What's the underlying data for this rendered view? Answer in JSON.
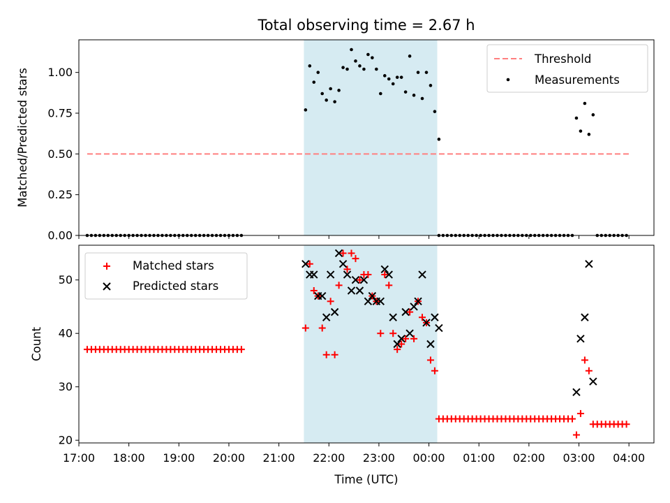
{
  "chart_data": [
    {
      "type": "scatter",
      "title": "Total observing time = 2.67 h",
      "xlabel": "",
      "ylabel": "Matched/Predicted stars",
      "xlim": [
        "17:00",
        "04:30"
      ],
      "ylim": [
        0,
        1.2
      ],
      "yticks": [
        "0.00",
        "0.25",
        "0.50",
        "0.75",
        "1.00"
      ],
      "shaded_span": [
        "21:30",
        "00:10"
      ],
      "legend": {
        "placement": "top-right",
        "entries": [
          "Threshold",
          "Measurements"
        ]
      },
      "series": [
        {
          "name": "Threshold",
          "style": "dashed-line",
          "color": "#ff7f7f",
          "x": [
            "17:10",
            "04:00"
          ],
          "values": [
            0.5,
            0.5
          ]
        },
        {
          "name": "Measurements",
          "style": "dot",
          "color": "#000000",
          "groups": [
            {
              "x_start": "17:10",
              "x_end": "20:15",
              "step_min": 5,
              "value": 0.0
            },
            {
              "x": [
                "21:32",
                "21:37",
                "21:42",
                "21:47",
                "21:52",
                "21:57",
                "22:02",
                "22:07",
                "22:12",
                "22:17",
                "22:22",
                "22:27",
                "22:32",
                "22:37",
                "22:42",
                "22:47",
                "22:52",
                "22:57",
                "23:02",
                "23:07",
                "23:12",
                "23:17",
                "23:22",
                "23:27",
                "23:32",
                "23:37",
                "23:42",
                "23:47",
                "23:52",
                "23:57",
                "00:02",
                "00:07",
                "00:12"
              ],
              "values": [
                0.77,
                1.04,
                0.94,
                1.0,
                0.87,
                0.83,
                0.9,
                0.82,
                0.89,
                1.03,
                1.02,
                1.14,
                1.07,
                1.04,
                1.02,
                1.11,
                1.09,
                1.02,
                0.87,
                0.98,
                0.96,
                0.93,
                0.97,
                0.97,
                0.88,
                1.1,
                0.86,
                1.0,
                0.84,
                1.0,
                0.92,
                0.76,
                0.59
              ]
            },
            {
              "x_start": "00:12",
              "x_end": "02:52",
              "step_min": 5,
              "value": 0.0
            },
            {
              "x": [
                "02:57",
                "03:02",
                "03:07",
                "03:12",
                "03:17"
              ],
              "values": [
                0.72,
                0.64,
                0.81,
                0.62,
                0.74
              ]
            },
            {
              "x_start": "03:22",
              "x_end": "04:00",
              "step_min": 5,
              "value": 0.0
            }
          ]
        }
      ]
    },
    {
      "type": "scatter",
      "title": "",
      "xlabel": "Time (UTC)",
      "ylabel": "Count",
      "xlim": [
        "17:00",
        "04:30"
      ],
      "ylim": [
        19.5,
        56.5
      ],
      "xticks": [
        "17:00",
        "18:00",
        "19:00",
        "20:00",
        "21:00",
        "22:00",
        "23:00",
        "00:00",
        "01:00",
        "02:00",
        "03:00",
        "04:00"
      ],
      "yticks": [
        "20",
        "30",
        "40",
        "50"
      ],
      "shaded_span": [
        "21:30",
        "00:10"
      ],
      "legend": {
        "placement": "top-left",
        "entries": [
          "Matched stars",
          "Predicted stars"
        ]
      },
      "series": [
        {
          "name": "Matched stars",
          "marker": "plus",
          "color": "#ff0000",
          "groups": [
            {
              "x_start": "17:10",
              "x_end": "20:15",
              "step_min": 5,
              "value": 37
            },
            {
              "x": [
                "21:32",
                "21:37",
                "21:42",
                "21:47",
                "21:52",
                "21:57",
                "22:02",
                "22:07",
                "22:12",
                "22:17",
                "22:22",
                "22:27",
                "22:32",
                "22:37",
                "22:42",
                "22:47",
                "22:52",
                "22:57",
                "23:02",
                "23:07",
                "23:12",
                "23:17",
                "23:22",
                "23:27",
                "23:32",
                "23:37",
                "23:42",
                "23:47",
                "23:52",
                "23:57",
                "00:02",
                "00:07"
              ],
              "values": [
                41,
                53,
                48,
                47,
                41,
                36,
                46,
                36,
                49,
                55,
                52,
                55,
                54,
                50,
                51,
                51,
                47,
                46,
                40,
                51,
                49,
                40,
                37,
                38,
                39,
                44,
                39,
                46,
                43,
                42,
                35,
                33
              ]
            },
            {
              "x_start": "00:12",
              "x_end": "02:52",
              "step_min": 5,
              "value": 24
            },
            {
              "x": [
                "02:57",
                "03:02",
                "03:07",
                "03:12"
              ],
              "values": [
                21,
                25,
                35,
                33
              ]
            },
            {
              "x_start": "03:17",
              "x_end": "04:00",
              "step_min": 5,
              "value": 23
            }
          ]
        },
        {
          "name": "Predicted stars",
          "marker": "x",
          "color": "#000000",
          "points": {
            "x": [
              "21:32",
              "21:37",
              "21:42",
              "21:47",
              "21:52",
              "21:57",
              "22:02",
              "22:07",
              "22:12",
              "22:17",
              "22:22",
              "22:27",
              "22:32",
              "22:37",
              "22:42",
              "22:47",
              "22:52",
              "22:57",
              "23:02",
              "23:07",
              "23:12",
              "23:17",
              "23:22",
              "23:27",
              "23:32",
              "23:37",
              "23:42",
              "23:47",
              "23:52",
              "23:57",
              "00:02",
              "00:07",
              "00:12",
              "02:57",
              "03:02",
              "03:07",
              "03:12",
              "03:17"
            ],
            "values": [
              53,
              51,
              51,
              47,
              47,
              43,
              51,
              44,
              55,
              53,
              51,
              48,
              50,
              48,
              50,
              46,
              47,
              46,
              46,
              52,
              51,
              43,
              38,
              39,
              44,
              40,
              45,
              46,
              51,
              42,
              38,
              43,
              41,
              29,
              39,
              43,
              53,
              31
            ]
          }
        }
      ]
    }
  ]
}
